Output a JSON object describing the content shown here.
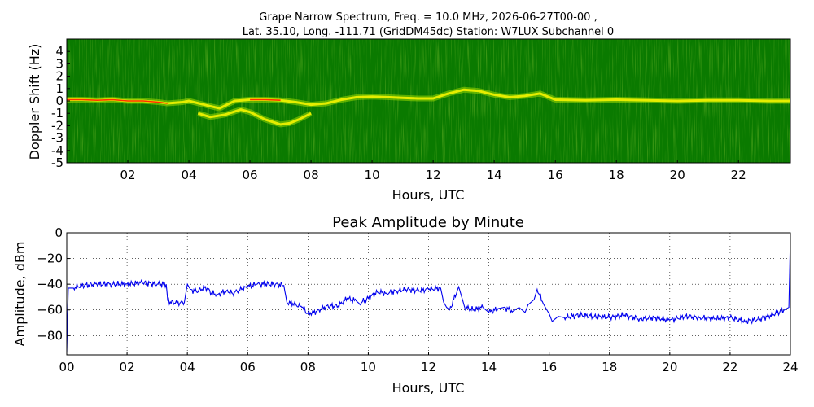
{
  "figure": {
    "title_line1": "Grape Narrow Spectrum, Freq. = 10.0 MHz, 2026-06-27T00-00 ,",
    "title_line2": "Lat.  35.10, Long. -111.71 (GridDM45dc) Station: W7LUX Subchannel 0"
  },
  "chart_data": [
    {
      "type": "heatmap",
      "title": "",
      "xlabel": "Hours, UTC",
      "ylabel": "Doppler Shift (Hz)",
      "xlim": [
        0,
        23.7
      ],
      "ylim": [
        -5,
        5
      ],
      "x_ticks": [
        2,
        4,
        6,
        8,
        10,
        12,
        14,
        16,
        18,
        20,
        22
      ],
      "x_tick_labels": [
        "02",
        "04",
        "06",
        "08",
        "10",
        "12",
        "14",
        "16",
        "18",
        "20",
        "22"
      ],
      "y_ticks": [
        4,
        3,
        2,
        1,
        0,
        -1,
        -2,
        -3,
        -4,
        -5
      ],
      "y_tick_labels": [
        "4",
        "3",
        "2",
        "1",
        "0",
        "-1",
        "-2",
        "-3",
        "-4",
        "-5"
      ],
      "colors": {
        "background": "#0a7a00",
        "weak": "#8fd000",
        "medium": "#f4f400",
        "strong": "#ff3000"
      },
      "traces": [
        {
          "name": "main",
          "points": [
            [
              0,
              0.1
            ],
            [
              0.5,
              0.1
            ],
            [
              1,
              0.05
            ],
            [
              1.5,
              0.1
            ],
            [
              2,
              0.0
            ],
            [
              2.5,
              0.0
            ],
            [
              3,
              -0.1
            ],
            [
              3.3,
              -0.2
            ],
            [
              3.8,
              -0.1
            ],
            [
              4,
              0.0
            ],
            [
              4.5,
              -0.3
            ],
            [
              5,
              -0.6
            ],
            [
              5.5,
              0.0
            ],
            [
              6,
              0.1
            ],
            [
              6.5,
              0.1
            ],
            [
              7,
              0.05
            ],
            [
              7.5,
              -0.1
            ],
            [
              8,
              -0.3
            ],
            [
              8.5,
              -0.2
            ],
            [
              9,
              0.1
            ],
            [
              9.5,
              0.3
            ],
            [
              10,
              0.35
            ],
            [
              10.5,
              0.3
            ],
            [
              11,
              0.25
            ],
            [
              11.5,
              0.2
            ],
            [
              12,
              0.2
            ],
            [
              12.5,
              0.6
            ],
            [
              13,
              0.9
            ],
            [
              13.5,
              0.8
            ],
            [
              14,
              0.5
            ],
            [
              14.5,
              0.3
            ],
            [
              15,
              0.4
            ],
            [
              15.5,
              0.6
            ],
            [
              16,
              0.1
            ],
            [
              17,
              0.05
            ],
            [
              18,
              0.1
            ],
            [
              19,
              0.05
            ],
            [
              20,
              0.0
            ],
            [
              21,
              0.05
            ],
            [
              22,
              0.05
            ],
            [
              23,
              0.0
            ],
            [
              23.7,
              0.0
            ]
          ]
        },
        {
          "name": "lower",
          "points": [
            [
              4.3,
              -1.0
            ],
            [
              4.7,
              -1.3
            ],
            [
              5.2,
              -1.1
            ],
            [
              5.7,
              -0.7
            ],
            [
              6,
              -0.9
            ],
            [
              6.5,
              -1.5
            ],
            [
              7,
              -1.9
            ],
            [
              7.3,
              -1.8
            ],
            [
              7.6,
              -1.5
            ],
            [
              8,
              -1.0
            ]
          ]
        }
      ]
    },
    {
      "type": "line",
      "title": "Peak Amplitude by Minute",
      "xlabel": "Hours, UTC",
      "ylabel": "Amplitude, dBm",
      "xlim": [
        0,
        24
      ],
      "ylim": [
        -95,
        0
      ],
      "x_ticks": [
        0,
        2,
        4,
        6,
        8,
        10,
        12,
        14,
        16,
        18,
        20,
        22,
        24
      ],
      "x_tick_labels": [
        "00",
        "02",
        "04",
        "06",
        "08",
        "10",
        "12",
        "14",
        "16",
        "18",
        "20",
        "22",
        "24"
      ],
      "y_ticks": [
        0,
        -20,
        -40,
        -60,
        -80
      ],
      "y_tick_labels": [
        "0",
        "−20",
        "−40",
        "−60",
        "−80"
      ],
      "grid": true,
      "line_color": "#0000ee",
      "series": [
        {
          "x": [
            0,
            0.05,
            0.2,
            0.5,
            1.0,
            1.5,
            2.0,
            2.5,
            3.0,
            3.3,
            3.35,
            3.6,
            3.9,
            4.0,
            4.1,
            4.3,
            4.6,
            4.8,
            5.0,
            5.3,
            5.5,
            5.8,
            6.0,
            6.3,
            6.6,
            7.0,
            7.2,
            7.3,
            7.5,
            7.8,
            8.0,
            8.3,
            8.6,
            9.0,
            9.3,
            9.6,
            9.7,
            10.0,
            10.3,
            10.6,
            11.0,
            11.3,
            11.6,
            12.0,
            12.4,
            12.5,
            12.6,
            12.7,
            13.0,
            13.1,
            13.2,
            13.5,
            13.8,
            14.0,
            14.3,
            14.5,
            14.8,
            15.0,
            15.2,
            15.3,
            15.5,
            15.6,
            15.8,
            16.0,
            16.1,
            16.3,
            16.5,
            17.0,
            17.5,
            18.0,
            18.5,
            19.0,
            19.5,
            20.0,
            20.5,
            21.0,
            21.5,
            22.0,
            22.5,
            23.0,
            23.5,
            23.8,
            23.95,
            24.0
          ],
          "y": [
            -93,
            -43,
            -43,
            -41,
            -40,
            -40,
            -40,
            -39,
            -40,
            -40,
            -53,
            -55,
            -54,
            -40,
            -44,
            -46,
            -42,
            -47,
            -48,
            -45,
            -47,
            -44,
            -42,
            -40,
            -40,
            -40,
            -41,
            -54,
            -55,
            -58,
            -63,
            -61,
            -57,
            -57,
            -51,
            -53,
            -55,
            -51,
            -46,
            -47,
            -45,
            -44,
            -45,
            -44,
            -43,
            -54,
            -58,
            -60,
            -42,
            -50,
            -58,
            -60,
            -58,
            -62,
            -59,
            -58,
            -61,
            -58,
            -62,
            -56,
            -52,
            -44,
            -55,
            -63,
            -69,
            -65,
            -66,
            -64,
            -65,
            -66,
            -64,
            -67,
            -66,
            -68,
            -65,
            -66,
            -67,
            -66,
            -69,
            -67,
            -63,
            -60,
            -58,
            -1
          ]
        }
      ]
    }
  ]
}
